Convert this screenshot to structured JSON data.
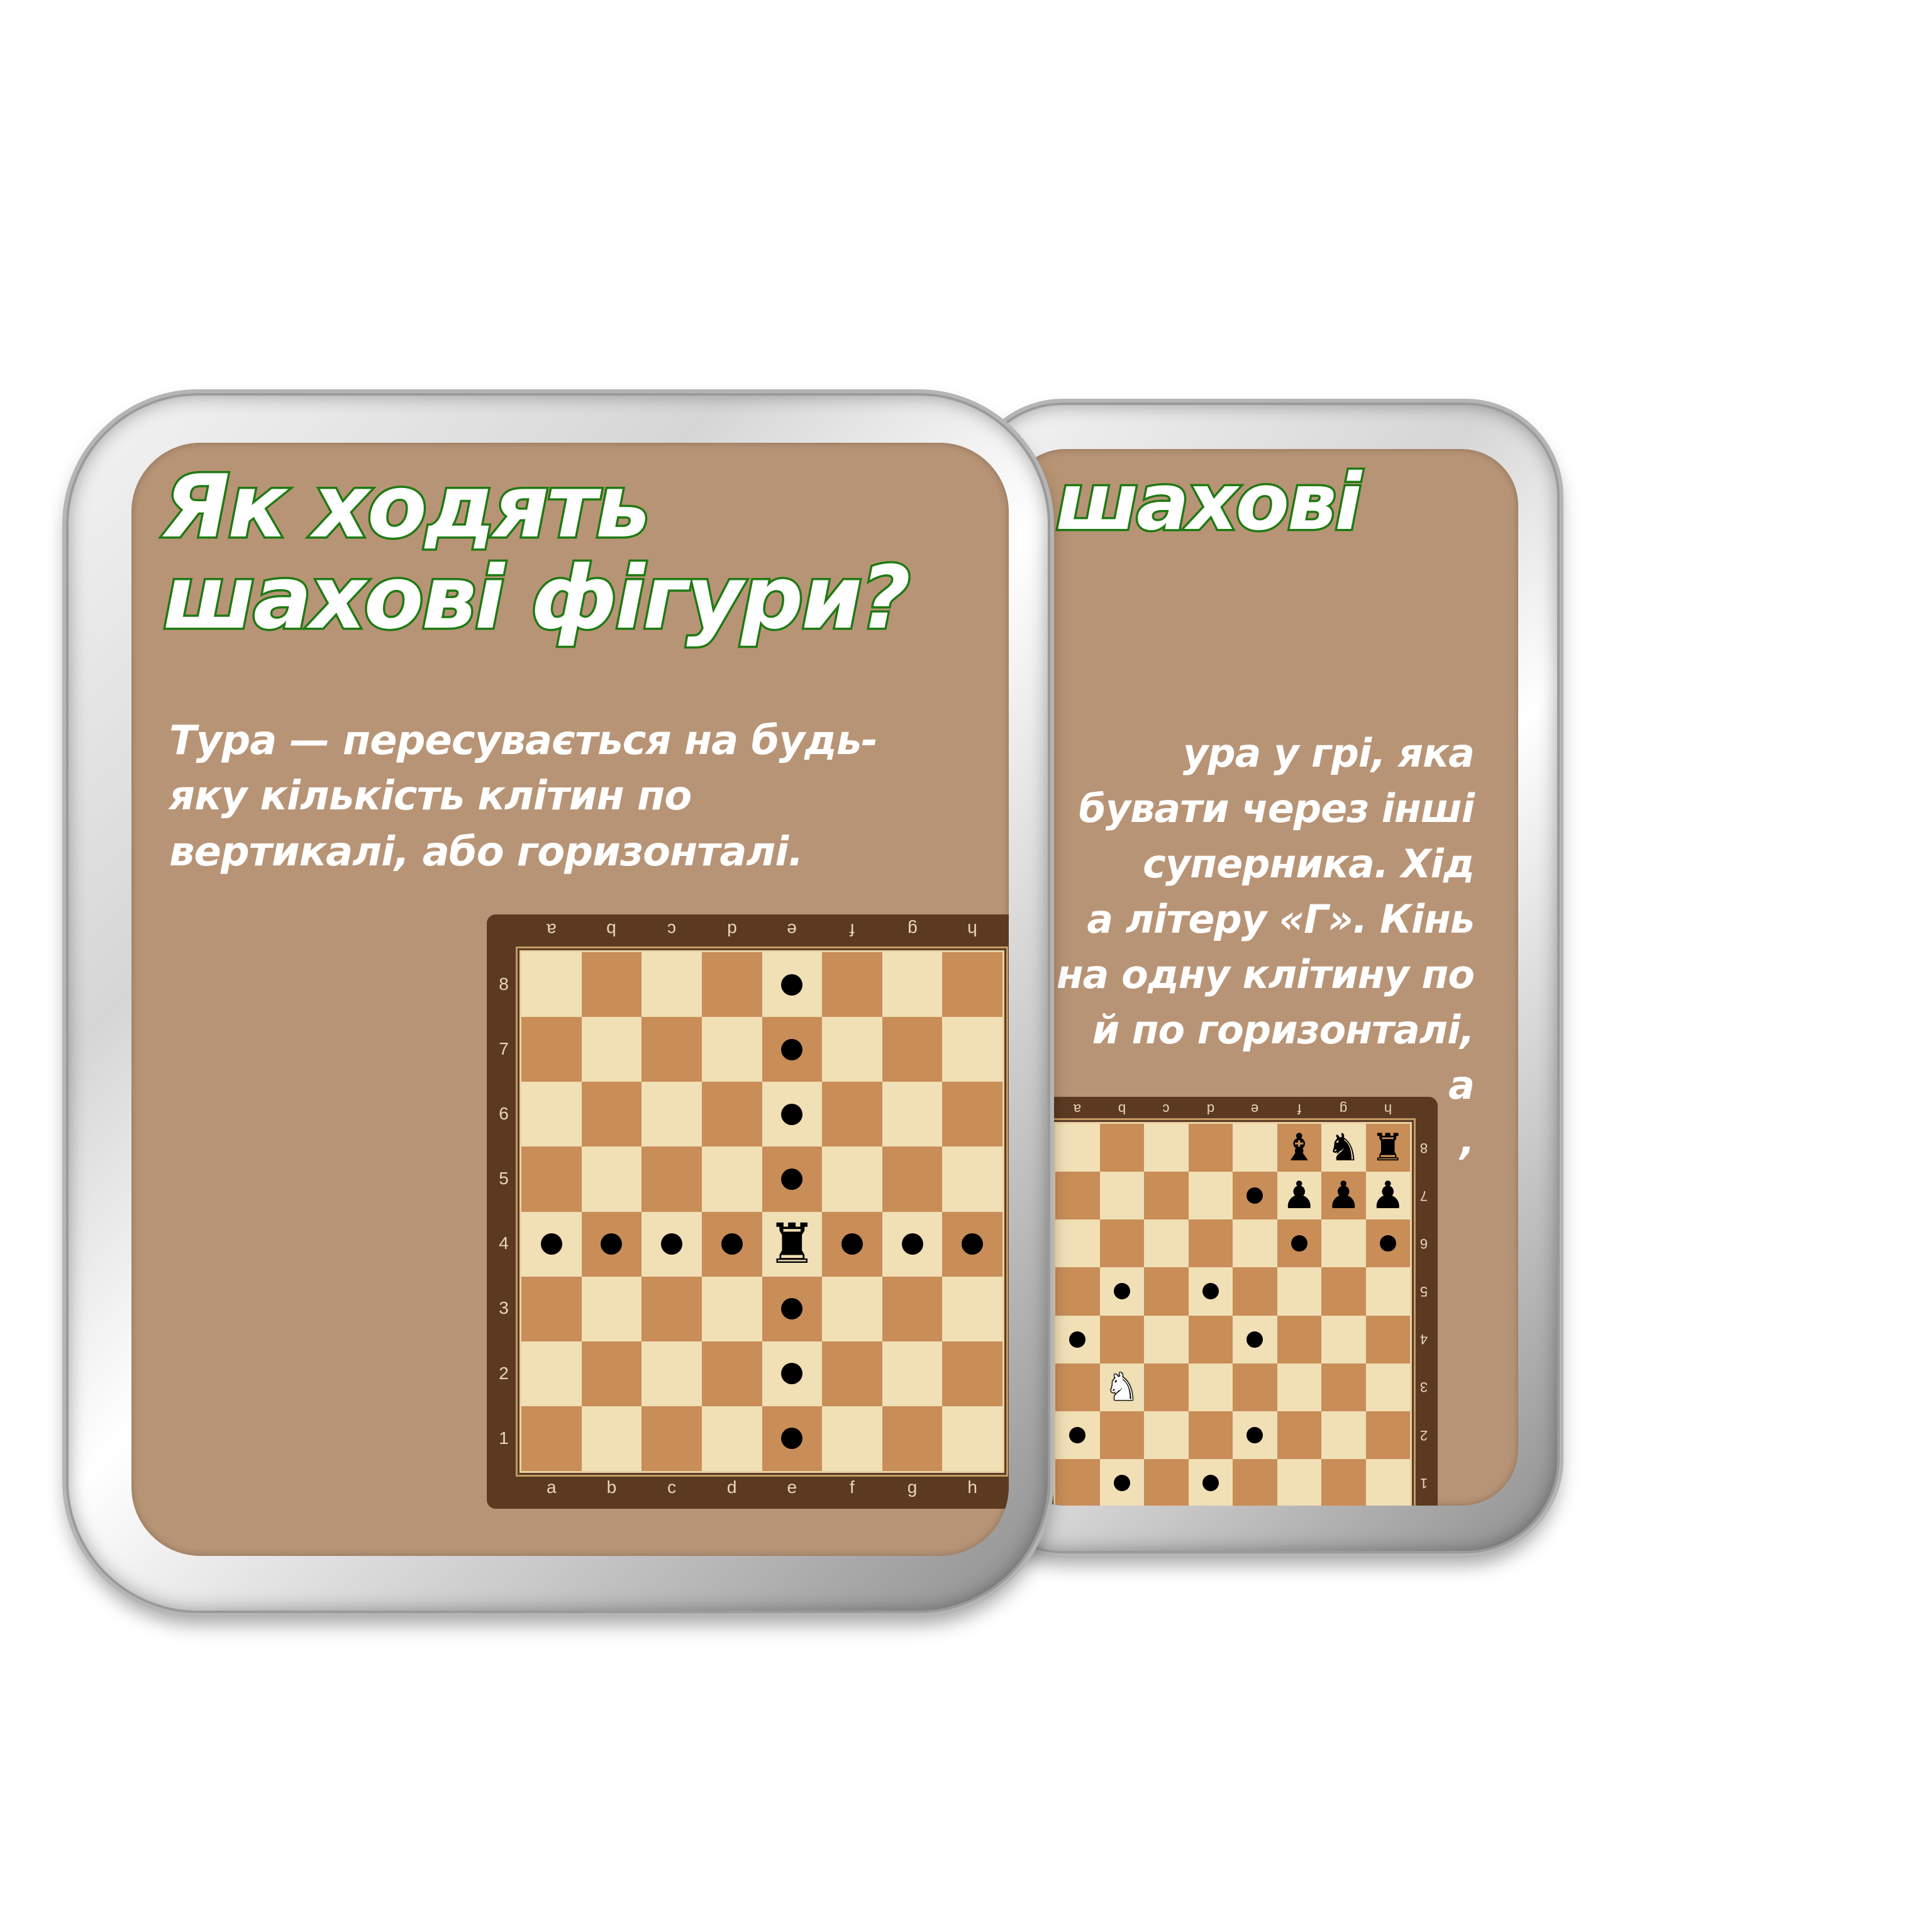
{
  "back_card": {
    "title_visible": "ть шахові",
    "text_lines": [
      "ура у грі, яка",
      "бувати через інші",
      "суперника. Хід",
      "а літеру «Г». Кінь",
      "на одну клітину по",
      "й по горизонталі,",
      "а",
      ","
    ],
    "board": {
      "files": [
        "a",
        "b",
        "c",
        "d",
        "e",
        "f",
        "g",
        "h"
      ],
      "ranks": [
        "8",
        "7",
        "6",
        "5",
        "4",
        "3",
        "2",
        "1"
      ],
      "pieces": [
        {
          "square": "f8",
          "glyph": "♝",
          "color": "black",
          "name": "black-bishop"
        },
        {
          "square": "g8",
          "glyph": "♞",
          "color": "black",
          "name": "black-knight"
        },
        {
          "square": "h8",
          "glyph": "♜",
          "color": "black",
          "name": "black-rook"
        },
        {
          "square": "f7",
          "glyph": "♟",
          "color": "black",
          "name": "black-pawn"
        },
        {
          "square": "g7",
          "glyph": "♟",
          "color": "black",
          "name": "black-pawn"
        },
        {
          "square": "h7",
          "glyph": "♟",
          "color": "black",
          "name": "black-pawn"
        },
        {
          "square": "b3",
          "glyph": "♞",
          "color": "white",
          "name": "white-knight"
        }
      ],
      "dots": [
        "e7",
        "f6",
        "h6",
        "b5",
        "d5",
        "a4",
        "e4",
        "a2",
        "e2",
        "b1",
        "d1"
      ]
    }
  },
  "front_card": {
    "title": "Як ходять шахові фігури?",
    "text": "Тура — пересувається на будь-яку кількість клітин по вертикалі, або горизонталі.",
    "board": {
      "files": [
        "a",
        "b",
        "c",
        "d",
        "e",
        "f",
        "g",
        "h"
      ],
      "ranks": [
        "8",
        "7",
        "6",
        "5",
        "4",
        "3",
        "2",
        "1"
      ],
      "pieces": [
        {
          "square": "e4",
          "glyph": "♜",
          "color": "black",
          "name": "black-rook"
        }
      ],
      "dots": [
        "e8",
        "e7",
        "e6",
        "e5",
        "a4",
        "b4",
        "c4",
        "d4",
        "f4",
        "g4",
        "h4",
        "e3",
        "e2",
        "e1"
      ]
    }
  },
  "colors": {
    "card_bg": "#b89476",
    "title_stroke": "#1f7a12",
    "board_light": "#f1dfb6",
    "board_dark": "#c98d58",
    "board_frame": "#5c3a22"
  }
}
